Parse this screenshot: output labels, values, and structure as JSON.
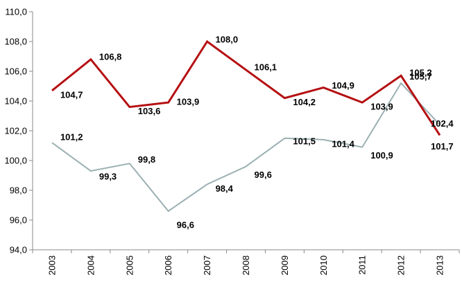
{
  "chart_data": {
    "type": "line",
    "categories": [
      "2003",
      "2004",
      "2005",
      "2006",
      "2007",
      "2008",
      "2009",
      "2010",
      "2011",
      "2012",
      "2013"
    ],
    "series": [
      {
        "key": "red",
        "color": "#b50f12",
        "values": [
          104.7,
          106.8,
          103.6,
          103.9,
          108.0,
          106.1,
          104.2,
          104.9,
          103.9,
          105.7,
          101.7
        ],
        "labels": [
          "104,7",
          "106,8",
          "103,6",
          "103,9",
          "108,0",
          "106,1",
          "104,2",
          "104,9",
          "103,9",
          "105,7",
          "101,7"
        ]
      },
      {
        "key": "gray",
        "color": "#9bb0b2",
        "values": [
          101.2,
          99.3,
          99.8,
          96.6,
          98.4,
          99.6,
          101.5,
          101.4,
          100.9,
          105.2,
          102.4
        ],
        "labels": [
          "101,2",
          "99,3",
          "99,8",
          "96,6",
          "98,4",
          "99,6",
          "101,5",
          "101,4",
          "100,9",
          "105,2",
          "102,4"
        ]
      }
    ],
    "ylim": [
      94,
      110
    ],
    "yticks": [
      "94,0",
      "96,0",
      "98,0",
      "100,0",
      "102,0",
      "104,0",
      "106,0",
      "108,0",
      "110,0"
    ],
    "grid": false,
    "legend": "none"
  }
}
